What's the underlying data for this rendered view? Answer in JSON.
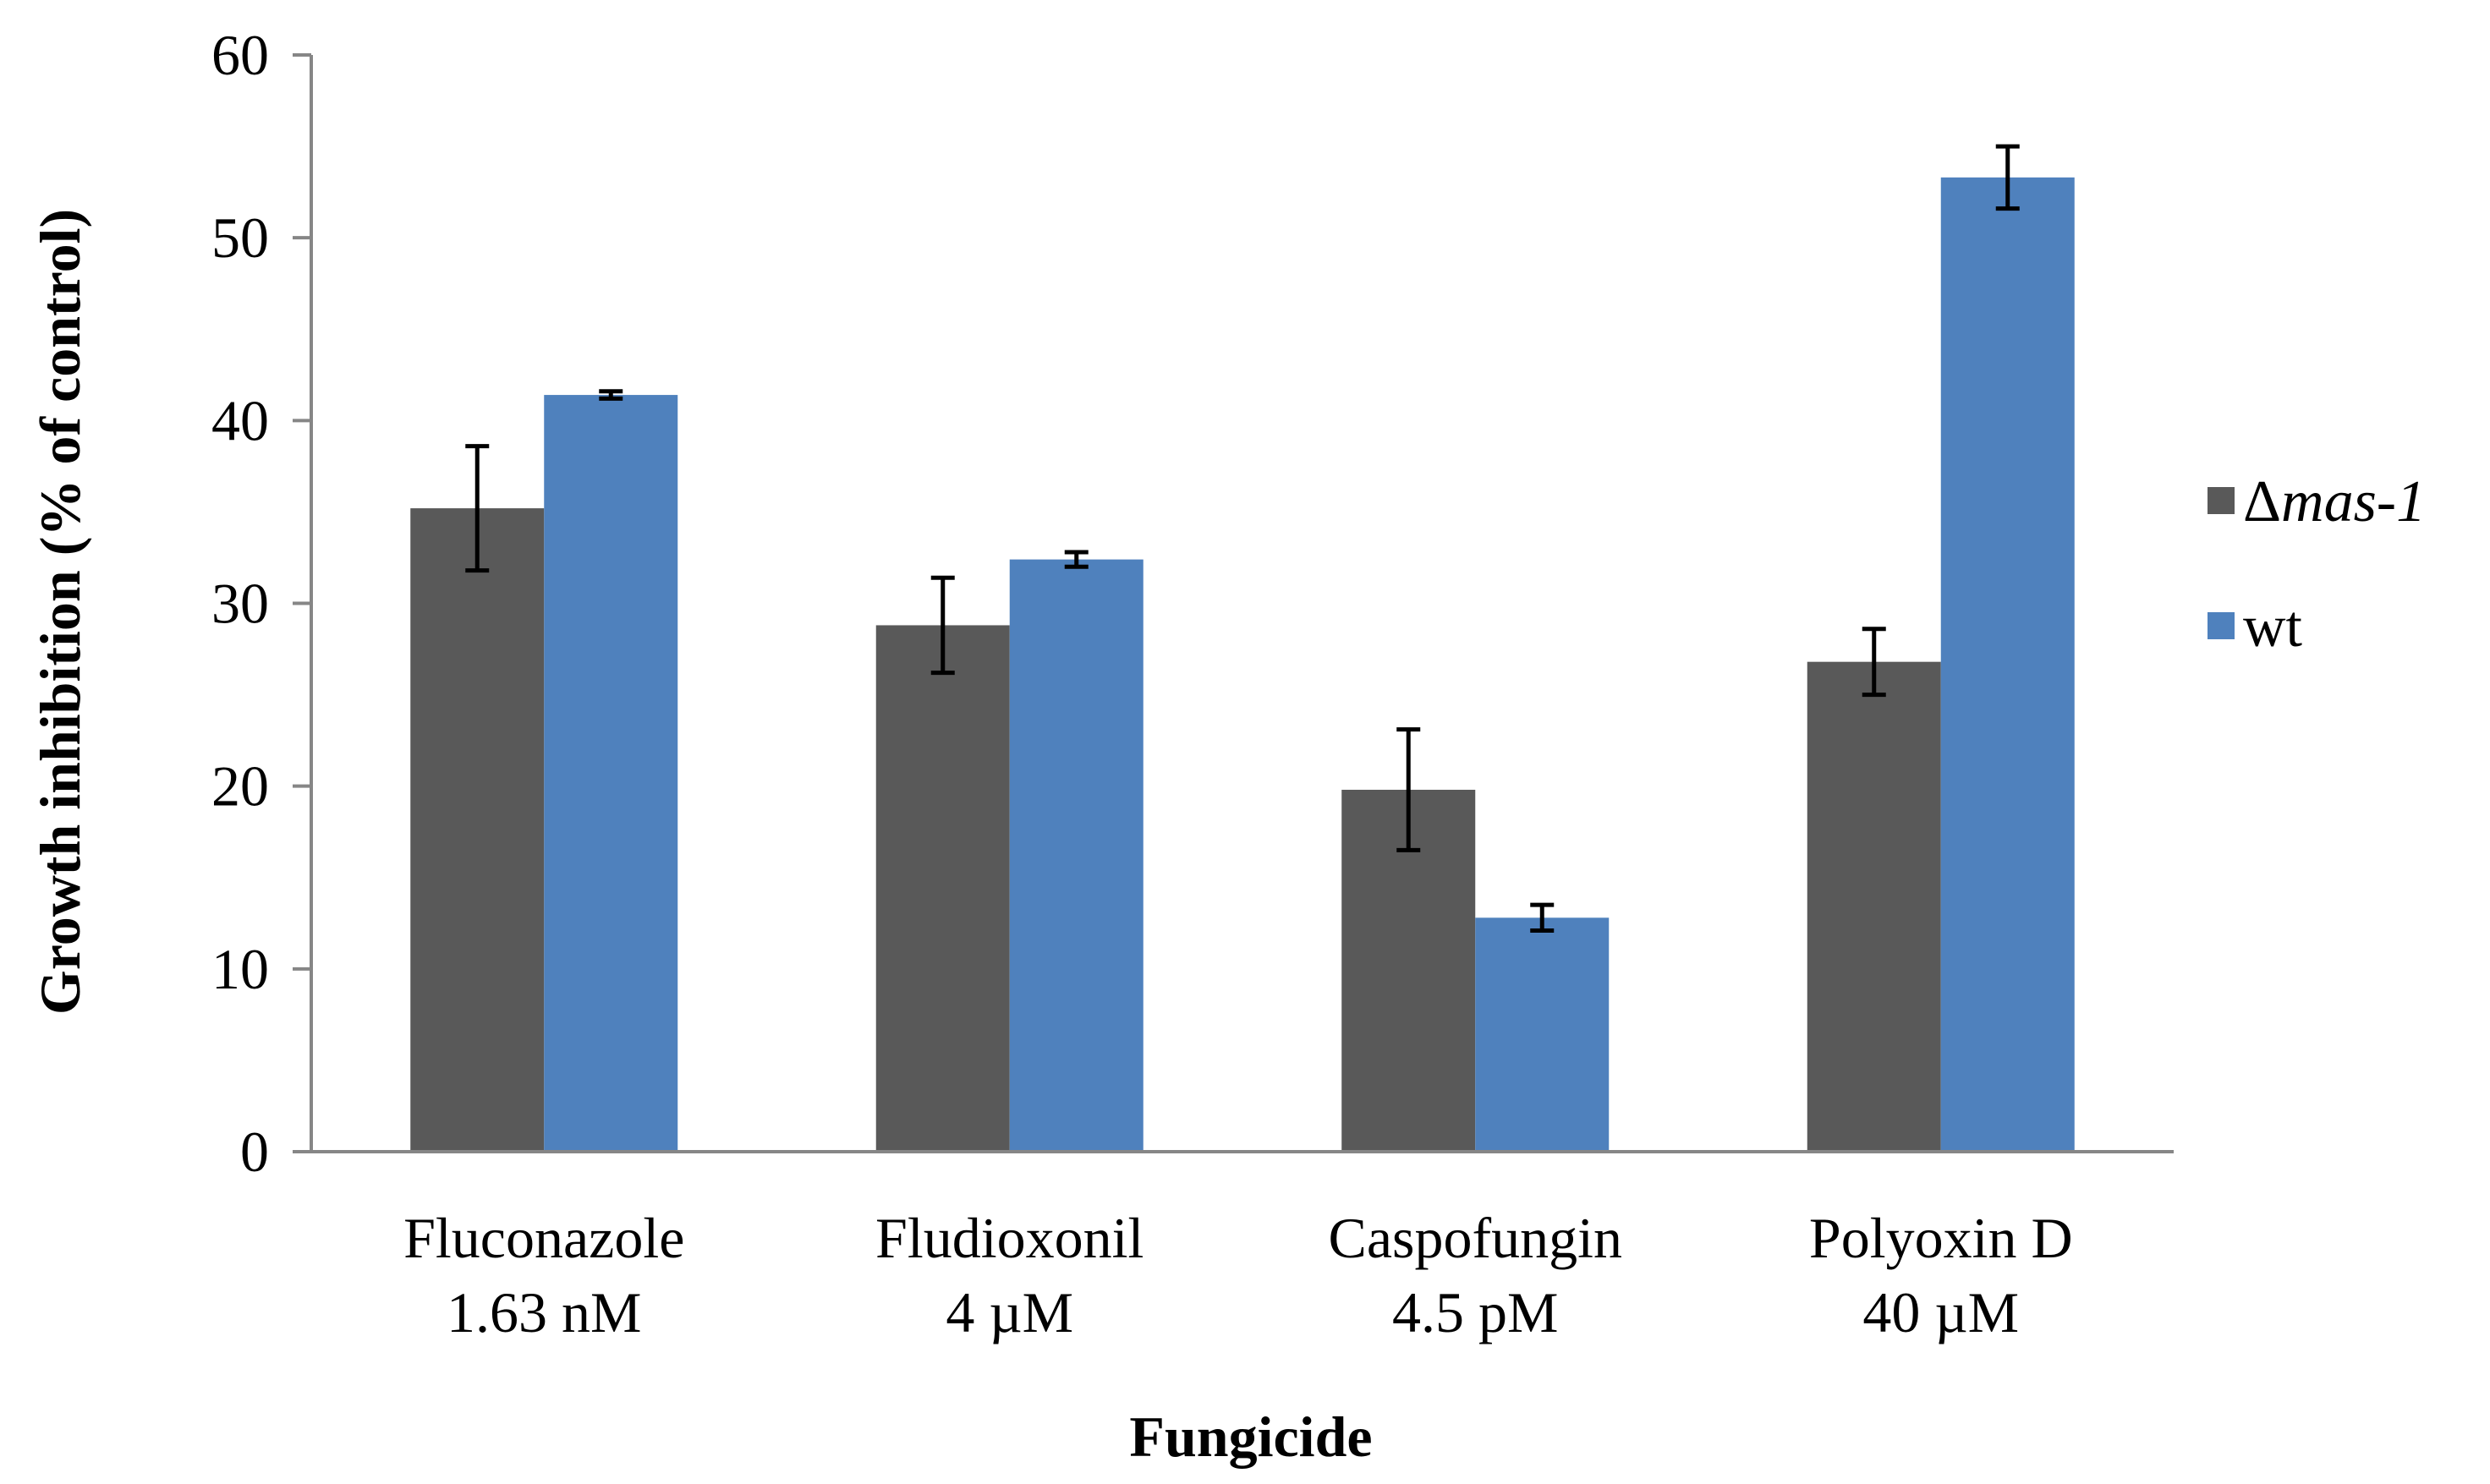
{
  "chart_data": {
    "type": "bar",
    "xlabel": "Fungicide",
    "ylabel": "Growth inhibition (% of control)",
    "ylim": [
      0,
      60
    ],
    "yticks": [
      0,
      10,
      20,
      30,
      40,
      50,
      60
    ],
    "grid": false,
    "legend_position": "right",
    "categories": [
      [
        "Fluconazole",
        "1.63 nM"
      ],
      [
        "Fludioxonil",
        "4 µM"
      ],
      [
        "Caspofungin",
        "4.5 pM"
      ],
      [
        "Polyoxin D",
        "40 µM"
      ]
    ],
    "series": [
      {
        "name": "Δmas-1",
        "legend_prefix": "Δ",
        "legend_italic": "mas-1",
        "color": "#595959",
        "values": [
          35.2,
          28.8,
          19.8,
          26.8
        ],
        "errors": [
          3.4,
          2.6,
          3.3,
          1.8
        ]
      },
      {
        "name": "wt",
        "legend_prefix": "wt",
        "legend_italic": "",
        "color": "#4f81bd",
        "values": [
          41.4,
          32.4,
          12.8,
          53.3
        ],
        "errors": [
          0.2,
          0.4,
          0.7,
          1.7
        ]
      }
    ]
  }
}
